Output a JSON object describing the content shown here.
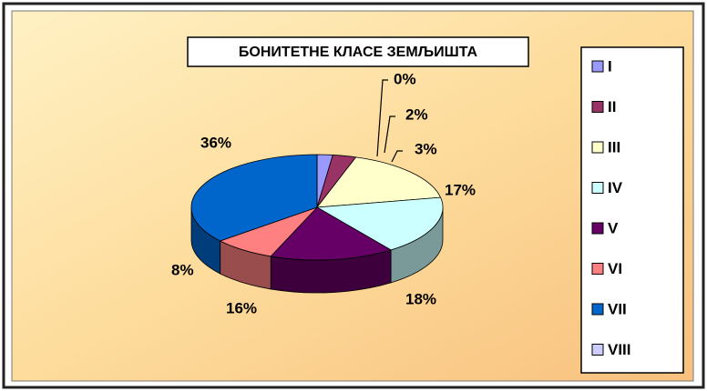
{
  "chart_data": {
    "type": "pie",
    "title": "БОНИТЕТНЕ КЛАСЕ ЗЕМЉИШТА",
    "categories": [
      "I",
      "II",
      "III",
      "IV",
      "V",
      "VI",
      "VII",
      "VIII"
    ],
    "values": [
      2,
      3,
      17,
      18,
      16,
      8,
      36,
      0
    ],
    "value_labels": [
      "2%",
      "3%",
      "17%",
      "18%",
      "16%",
      "8%",
      "36%",
      "0%"
    ],
    "colors": [
      "#9999ff",
      "#993366",
      "#ffffcc",
      "#ccffff",
      "#660066",
      "#ff8080",
      "#0066cc",
      "#ccccff"
    ],
    "legend": "right"
  }
}
